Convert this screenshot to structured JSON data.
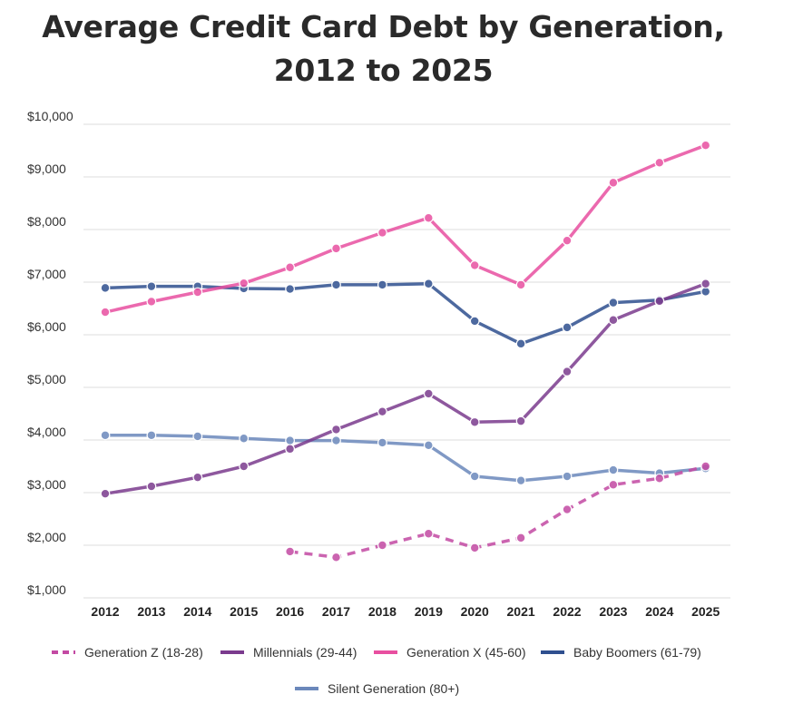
{
  "chart_data": {
    "type": "line",
    "title": "Average Credit Card Debt by Generation, 2012 to 2025",
    "xlabel": "",
    "ylabel": "",
    "ylim": [
      1000,
      10000
    ],
    "yticks": [
      1000,
      2000,
      3000,
      4000,
      5000,
      6000,
      7000,
      8000,
      9000,
      10000
    ],
    "ytick_labels": [
      "$1,000",
      "$2,000",
      "$3,000",
      "$4,000",
      "$5,000",
      "$6,000",
      "$7,000",
      "$8,000",
      "$9,000",
      "$10,000"
    ],
    "categories": [
      "2012",
      "2013",
      "2014",
      "2015",
      "2016",
      "2017",
      "2018",
      "2019",
      "2020",
      "2021",
      "2022",
      "2023",
      "2024",
      "2025"
    ],
    "grid": true,
    "legend_position": "bottom",
    "series": [
      {
        "name": "Generation Z (18-28)",
        "color": "#c34aa3",
        "dashed": true,
        "values": [
          null,
          null,
          null,
          null,
          1880,
          1770,
          2000,
          2220,
          1950,
          2140,
          2680,
          3150,
          3270,
          3500
        ]
      },
      {
        "name": "Millennials (29-44)",
        "color": "#7b3b8e",
        "dashed": false,
        "values": [
          2980,
          3120,
          3290,
          3500,
          3830,
          4200,
          4540,
          4880,
          4340,
          4360,
          5300,
          6280,
          6640,
          6970
        ]
      },
      {
        "name": "Generation X (45-60)",
        "color": "#e84fa0",
        "dashed": false,
        "values": [
          6430,
          6630,
          6810,
          6980,
          7280,
          7640,
          7940,
          8220,
          7320,
          6950,
          7790,
          8890,
          9270,
          9600
        ]
      },
      {
        "name": "Baby Boomers (61-79)",
        "color": "#2f4f8f",
        "dashed": false,
        "values": [
          6890,
          6920,
          6920,
          6880,
          6870,
          6950,
          6950,
          6970,
          6260,
          5830,
          6140,
          6610,
          6660,
          6820
        ]
      },
      {
        "name": "Silent Generation (80+)",
        "color": "#6b88bb",
        "dashed": false,
        "values": [
          4090,
          4090,
          4070,
          4030,
          3990,
          3990,
          3950,
          3900,
          3310,
          3230,
          3310,
          3430,
          3370,
          3460
        ]
      }
    ]
  }
}
